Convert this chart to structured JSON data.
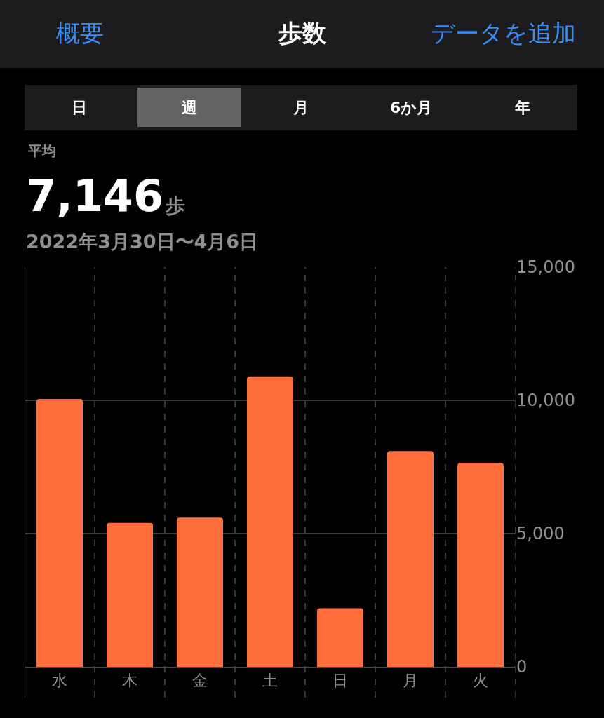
{
  "chart_data": {
    "type": "bar",
    "title": "歩数",
    "categories": [
      "水",
      "木",
      "金",
      "土",
      "日",
      "月",
      "火"
    ],
    "values": [
      10050,
      5400,
      5600,
      10900,
      2200,
      8100,
      7650
    ],
    "color": "#fe6d3c",
    "ylim": [
      0,
      15000
    ],
    "yticks": [
      0,
      {
        "value": 5000,
        "label": "5,000"
      },
      {
        "value": 10000,
        "label": "10,000"
      },
      {
        "value": 15000,
        "label": "15,000"
      }
    ],
    "grid": true,
    "annotations": [
      "概要",
      "データを追加",
      "日",
      "週",
      "月",
      "6か月",
      "年",
      "平均",
      "7,146",
      "歩",
      "2022年3月30日〜4月6日"
    ]
  }
}
